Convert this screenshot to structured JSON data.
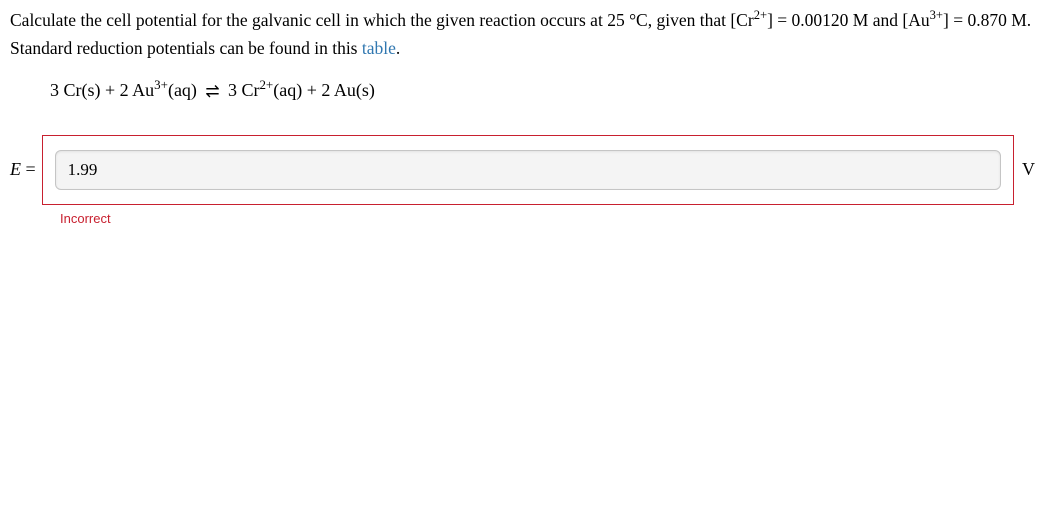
{
  "prompt": {
    "part1": "Calculate the cell potential for the galvanic cell in which the given reaction occurs at 25 °C, given that [Cr",
    "cr_sup": "2+",
    "part2": "] = 0.00120 M and [Au",
    "au_sup": "3+",
    "part3": "] = 0.870 M. Standard reduction potentials can be found in this ",
    "link_text": "table",
    "part4": "."
  },
  "equation": {
    "t1": "3 Cr(s) + 2 Au",
    "sup1": "3+",
    "t2": "(aq) ",
    "arrow_top": "⇀",
    "arrow_bot": "↽",
    "t3": " 3 Cr",
    "sup2": "2+",
    "t4": "(aq) + 2 Au(s)"
  },
  "answer": {
    "label_E": "E",
    "label_eq": " = ",
    "value": "1.99",
    "unit": "V"
  },
  "feedback": "Incorrect",
  "colors": {
    "error": "#c8202f",
    "link": "#3077b0",
    "input_bg": "#f4f4f4",
    "input_border": "#c5c5c5"
  }
}
